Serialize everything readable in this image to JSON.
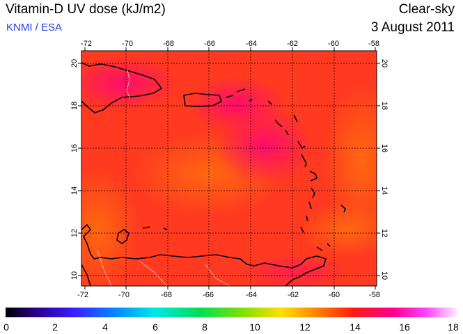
{
  "header": {
    "title": "Vitamin-D UV dose (kJ/m2)",
    "credit": "KNMI / ESA",
    "sky": "Clear-sky",
    "date": "3 August 2011"
  },
  "map": {
    "lon_ticks": [
      "-72",
      "-70",
      "-68",
      "-66",
      "-64",
      "-62",
      "-60",
      "-58"
    ],
    "lat_ticks": [
      "20",
      "18",
      "16",
      "14",
      "12",
      "10"
    ],
    "lon_range": [
      -72,
      -58
    ],
    "lat_range": [
      9.5,
      20.5
    ]
  },
  "colorbar": {
    "labels": [
      "0",
      "2",
      "4",
      "6",
      "8",
      "10",
      "12",
      "14",
      "16",
      "18"
    ],
    "range": [
      0,
      18
    ],
    "colors": [
      "#000000",
      "#3a00c8",
      "#0060ff",
      "#00e0ff",
      "#00e070",
      "#60e000",
      "#ffe000",
      "#ff7a00",
      "#ff1a20",
      "#ff0088",
      "#ff30ff",
      "#ffe8ff"
    ]
  }
}
